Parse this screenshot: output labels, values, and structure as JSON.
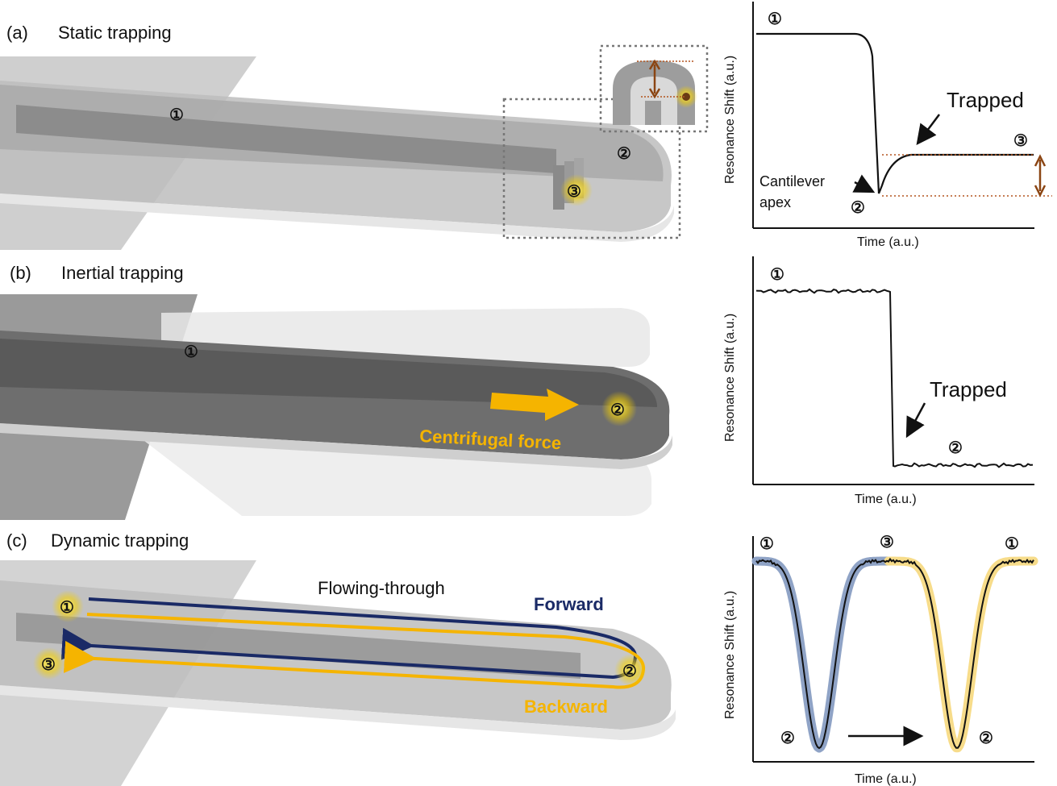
{
  "panels": [
    {
      "tag": "(a)",
      "title": "Static trapping"
    },
    {
      "tag": "(b)",
      "title": "Inertial trapping"
    },
    {
      "tag": "(c)",
      "title": "Dynamic trapping"
    }
  ],
  "markers": {
    "one": "①",
    "two": "②",
    "three": "③"
  },
  "labels": {
    "trapped": "Trapped",
    "cantilever_apex_1": "Cantilever",
    "cantilever_apex_2": "apex",
    "centrifugal_force": "Centrifugal force",
    "flowing_through": "Flowing-through",
    "forward": "Forward",
    "backward": "Backward"
  },
  "axes": {
    "ylabel": "Resonance Shift (a.u.)",
    "xlabel": "Time (a.u.)"
  },
  "colors": {
    "forward": "#1a2a66",
    "backward": "#f5b400",
    "highlight": "#f5d000",
    "bracket": "#8b4513",
    "blue_fill": "#8fa3c6",
    "yellow_fill": "#f7dc8a"
  }
}
